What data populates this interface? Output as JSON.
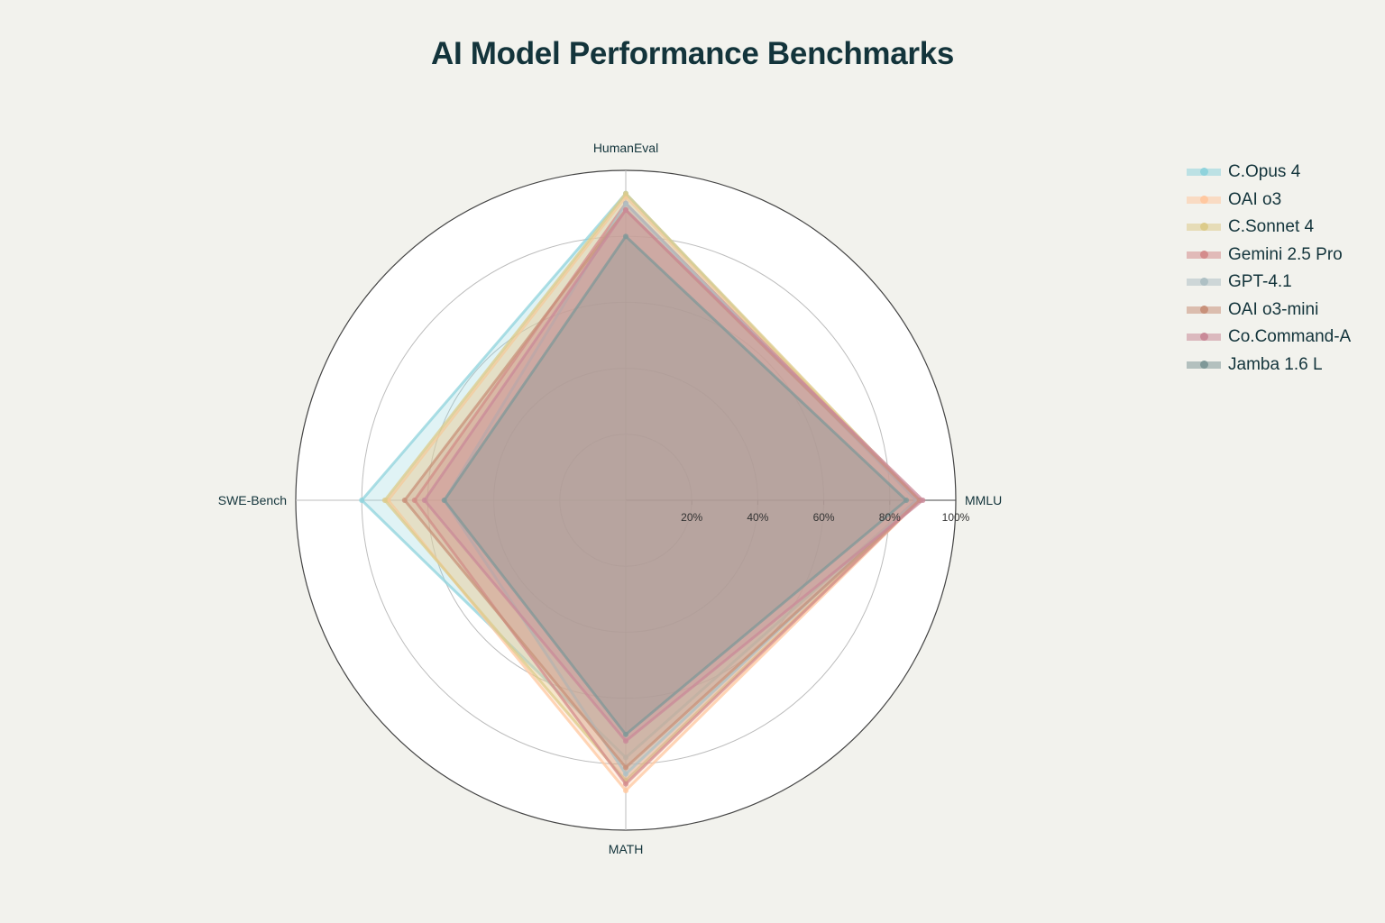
{
  "chart_data": {
    "type": "radar",
    "title": "AI Model Performance Benchmarks",
    "axes": [
      "HumanEval",
      "MMLU",
      "MATH",
      "SWE-Bench"
    ],
    "radial_ticks": [
      "20%",
      "40%",
      "60%",
      "80%",
      "100%"
    ],
    "rlim": [
      0,
      100
    ],
    "legend_position": "top-right",
    "series": [
      {
        "name": "C.Opus 4",
        "color": "#8fd3dc",
        "values": [
          93,
          88,
          78,
          80
        ]
      },
      {
        "name": "OAI o3",
        "color": "#ffc8a0",
        "values": [
          92,
          89,
          88,
          72
        ]
      },
      {
        "name": "C.Sonnet 4",
        "color": "#dccb8a",
        "values": [
          93,
          89,
          85,
          73
        ]
      },
      {
        "name": "Gemini 2.5 Pro",
        "color": "#d48c8c",
        "values": [
          90,
          89,
          86,
          64
        ]
      },
      {
        "name": "GPT-4.1",
        "color": "#aec0c4",
        "values": [
          90,
          88,
          83,
          55
        ]
      },
      {
        "name": "OAI o3-mini",
        "color": "#c8917a",
        "values": [
          88,
          89,
          81,
          67
        ]
      },
      {
        "name": "Co.Command-A",
        "color": "#c98a98",
        "values": [
          88,
          90,
          73,
          61
        ]
      },
      {
        "name": "Jamba 1.6 L",
        "color": "#7f9898",
        "values": [
          80,
          85,
          71,
          55
        ]
      }
    ]
  }
}
